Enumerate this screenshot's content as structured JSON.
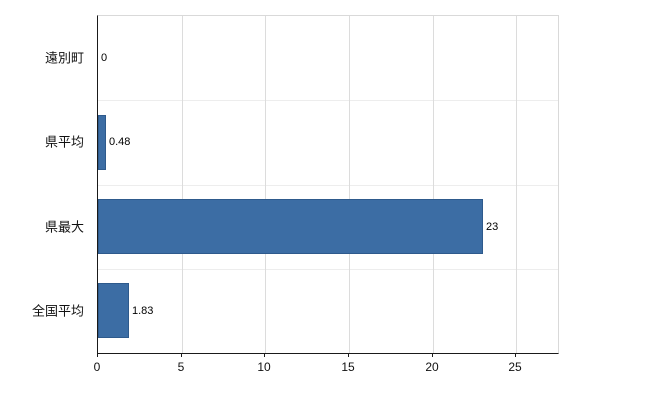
{
  "chart_data": {
    "type": "bar",
    "orientation": "horizontal",
    "title": "",
    "xlabel": "",
    "ylabel": "",
    "categories": [
      "遠別町",
      "県平均",
      "県最大",
      "全国平均"
    ],
    "values": [
      0,
      0.48,
      23,
      1.83
    ],
    "data_labels": [
      "0",
      "0.48",
      "23",
      "1.83"
    ],
    "xlim": [
      0,
      27.5
    ],
    "xticks": [
      0,
      5,
      10,
      15,
      20,
      25
    ],
    "grid": true,
    "legend": false,
    "bar_color": "#3c6da4",
    "bar_border_color": "#2e5a8c",
    "axis_color": "#1a1a1a",
    "gridline_color": "#dcdcdc"
  }
}
